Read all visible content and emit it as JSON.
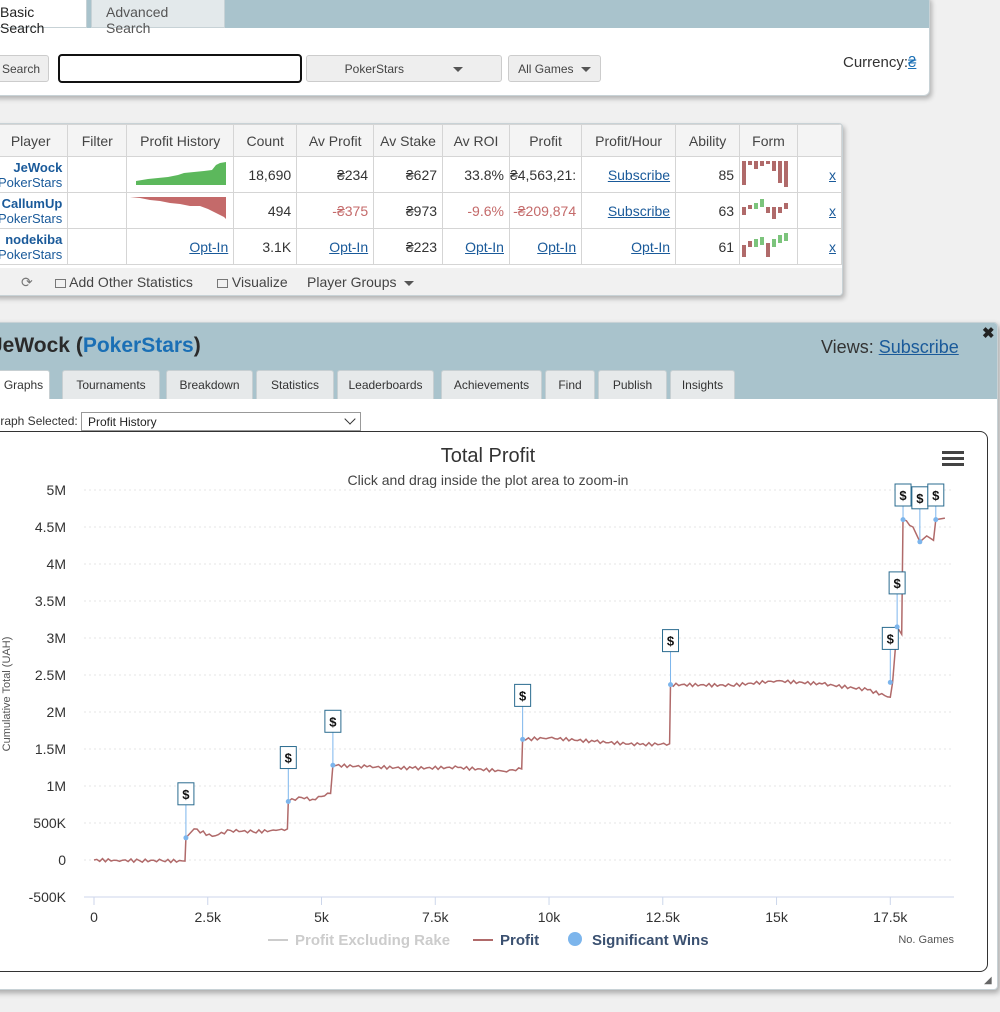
{
  "search": {
    "tabs": [
      "Basic Search",
      "Advanced Search"
    ],
    "search_button": "Search",
    "input_value": "",
    "site_select": "PokerStars",
    "game_select": "All Games",
    "currency_label": "Currency:",
    "currency_symbol": "₴"
  },
  "results": {
    "headers": [
      "Player",
      "Filter",
      "Profit History",
      "Count",
      "Av Profit",
      "Av Stake",
      "Av ROI",
      "Profit",
      "Profit/Hour",
      "Ability",
      "Form"
    ],
    "rows": [
      {
        "name": "JeWock",
        "site": "PokerStars",
        "count": "18,690",
        "av_profit": "₴234",
        "av_stake": "₴627",
        "av_roi": "33.8%",
        "profit": "₴4,563,21:",
        "profit_hour": "Subscribe",
        "ability": "85",
        "remove": "x",
        "trend": "positive"
      },
      {
        "name": "CallumUp",
        "site": "PokerStars",
        "count": "494",
        "av_profit": "-₴375",
        "av_stake": "₴973",
        "av_roi": "-9.6%",
        "profit": "-₴209,874",
        "profit_hour": "Subscribe",
        "ability": "63",
        "remove": "x",
        "trend": "negative"
      },
      {
        "name": "nodekiba",
        "site": "PokerStars",
        "history": "Opt-In",
        "count": "3.1K",
        "av_profit": "Opt-In",
        "av_stake": "₴223",
        "av_roi": "Opt-In",
        "profit": "Opt-In",
        "profit_hour": "Opt-In",
        "ability": "61",
        "remove": "x"
      }
    ],
    "toolbar": {
      "add_stats": "Add Other Statistics",
      "visualize": "Visualize",
      "player_groups": "Player Groups"
    }
  },
  "player": {
    "name": "JeWock",
    "paren_open": " (",
    "site": "PokerStars",
    "paren_close": ")",
    "views_label": "Views: ",
    "views_link": "Subscribe",
    "close": "✖",
    "tabs": [
      "Graphs",
      "Tournaments",
      "Breakdown",
      "Statistics",
      "Leaderboards",
      "Achievements",
      "Find",
      "Publish",
      "Insights"
    ],
    "graph_selected_label": "Graph Selected:",
    "graph_selected_value": "Profit History"
  },
  "chart_data": {
    "type": "line",
    "title": "Total Profit",
    "subtitle": "Click and drag inside the plot area to zoom-in",
    "ylabel": "Cumulative Total (UAH)",
    "xlabel": "No. Games",
    "xlim": [
      0,
      18900
    ],
    "ylim": [
      -500000,
      5000000
    ],
    "x_ticks": [
      "0",
      "2.5k",
      "5k",
      "7.5k",
      "10k",
      "12.5k",
      "15k",
      "17.5k"
    ],
    "y_ticks": [
      "5M",
      "4.5M",
      "4M",
      "3.5M",
      "3M",
      "2.5M",
      "2M",
      "1.5M",
      "1M",
      "500K",
      "0",
      "-500K"
    ],
    "legend": [
      "Profit Excluding Rake",
      "Profit",
      "Significant Wins"
    ],
    "series_colors": {
      "profit": "#b06a6a",
      "excluding_rake": "#cccccc",
      "wins": "#7cb5ec"
    },
    "profit": [
      [
        0,
        0
      ],
      [
        500,
        -5000
      ],
      [
        1000,
        -8000
      ],
      [
        1500,
        -10000
      ],
      [
        2000,
        -15000
      ],
      [
        2020,
        300000
      ],
      [
        2200,
        420000
      ],
      [
        2600,
        320000
      ],
      [
        3000,
        400000
      ],
      [
        3500,
        380000
      ],
      [
        4000,
        400000
      ],
      [
        4250,
        420000
      ],
      [
        4270,
        790000
      ],
      [
        4500,
        850000
      ],
      [
        4800,
        820000
      ],
      [
        5200,
        900000
      ],
      [
        5250,
        1280000
      ],
      [
        6000,
        1260000
      ],
      [
        7000,
        1240000
      ],
      [
        8000,
        1250000
      ],
      [
        9000,
        1200000
      ],
      [
        9400,
        1230000
      ],
      [
        9420,
        1630000
      ],
      [
        10000,
        1650000
      ],
      [
        11000,
        1600000
      ],
      [
        12000,
        1560000
      ],
      [
        12650,
        1570000
      ],
      [
        12670,
        2370000
      ],
      [
        14000,
        2360000
      ],
      [
        15000,
        2420000
      ],
      [
        16000,
        2380000
      ],
      [
        17000,
        2300000
      ],
      [
        17500,
        2200000
      ],
      [
        17550,
        2400000
      ],
      [
        17650,
        3150000
      ],
      [
        17750,
        3050000
      ],
      [
        17780,
        4600000
      ],
      [
        18000,
        4500000
      ],
      [
        18150,
        4300000
      ],
      [
        18300,
        4380000
      ],
      [
        18450,
        4320000
      ],
      [
        18500,
        4600000
      ],
      [
        18700,
        4620000
      ]
    ],
    "significant_wins": [
      {
        "x": 2020,
        "y": 300000,
        "label": "$"
      },
      {
        "x": 4270,
        "y": 790000,
        "label": "$"
      },
      {
        "x": 5250,
        "y": 1280000,
        "label": "$"
      },
      {
        "x": 9420,
        "y": 1630000,
        "label": "$"
      },
      {
        "x": 12670,
        "y": 2370000,
        "label": "$"
      },
      {
        "x": 17500,
        "y": 2400000,
        "label": "$"
      },
      {
        "x": 17650,
        "y": 3150000,
        "label": "$"
      },
      {
        "x": 17780,
        "y": 4600000,
        "label": "$"
      },
      {
        "x": 18150,
        "y": 4300000,
        "label": "$"
      },
      {
        "x": 18500,
        "y": 4600000,
        "label": "$"
      }
    ]
  }
}
